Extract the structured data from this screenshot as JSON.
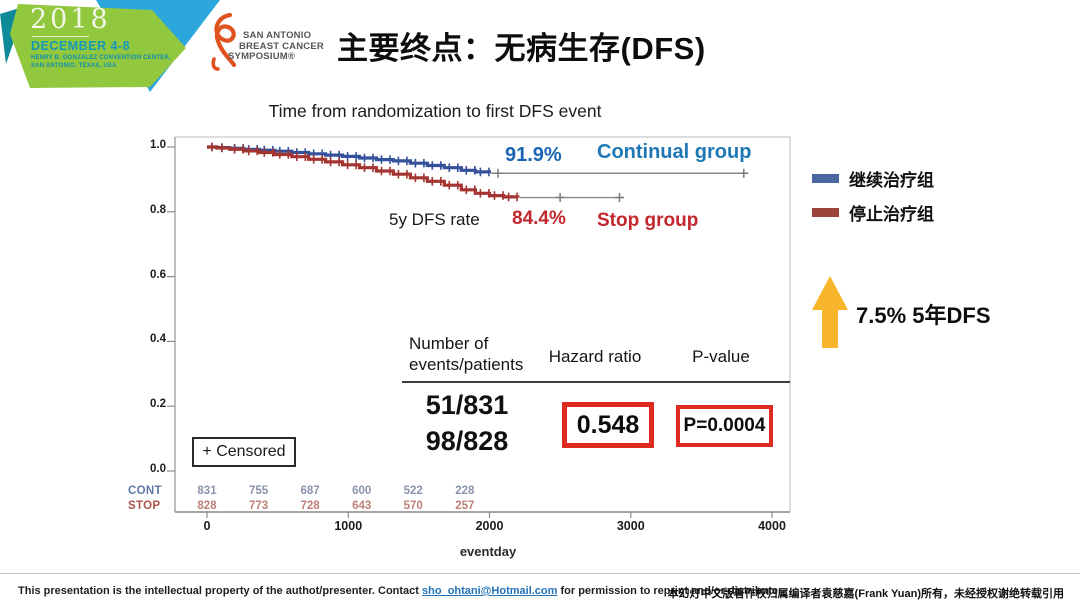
{
  "header": {
    "year": "2018",
    "dates": "DECEMBER 4-8",
    "venue_line1": "HENRY B. GONZALEZ CONVENTION CENTER,",
    "venue_line2": "SAN ANTONIO, TEXAS, USA",
    "logo_lines": [
      "SAN ANTONIO",
      "BREAST CANCER",
      "SYMPOSIUM®"
    ],
    "title": "主要终点：无病生存(DFS)",
    "banner_colors": {
      "green": "#92c83e",
      "blue": "#2ba7dc",
      "teal": "#0e8a99",
      "ribbon_orange": "#e0531f"
    }
  },
  "chart_data": {
    "type": "line",
    "title": "Time from randomization to first DFS event",
    "xlabel": "eventday",
    "ylabel": "",
    "xlim": [
      0,
      4000
    ],
    "ylim": [
      0.0,
      1.0
    ],
    "grid": false,
    "xticks": [
      "0",
      "1000",
      "2000",
      "3000",
      "4000"
    ],
    "yticks": [
      "1.0",
      "0.8",
      "0.6",
      "0.4",
      "0.2",
      "0.0"
    ],
    "rate_label": "5y DFS rate",
    "censored_label": "+ Censored",
    "series": [
      {
        "name": "Continual group",
        "label_5y": "91.9%",
        "color": "#35519b",
        "steps": [
          [
            0,
            1
          ],
          [
            70,
            0.998
          ],
          [
            160,
            0.996
          ],
          [
            260,
            0.993
          ],
          [
            370,
            0.99
          ],
          [
            480,
            0.987
          ],
          [
            600,
            0.983
          ],
          [
            720,
            0.979
          ],
          [
            840,
            0.975
          ],
          [
            960,
            0.971
          ],
          [
            1080,
            0.966
          ],
          [
            1200,
            0.961
          ],
          [
            1320,
            0.957
          ],
          [
            1440,
            0.95
          ],
          [
            1560,
            0.943
          ],
          [
            1680,
            0.936
          ],
          [
            1800,
            0.928
          ],
          [
            1900,
            0.923
          ],
          [
            2000,
            0.919
          ]
        ],
        "ext": {
          "s": 0.919,
          "from": 2010,
          "to": 3830,
          "plus": [
            2060,
            3800
          ]
        }
      },
      {
        "name": "Stop group",
        "label_5y": "84.4%",
        "color": "#a33430",
        "steps": [
          [
            0,
            1
          ],
          [
            70,
            0.997
          ],
          [
            160,
            0.993
          ],
          [
            260,
            0.988
          ],
          [
            370,
            0.983
          ],
          [
            480,
            0.977
          ],
          [
            600,
            0.97
          ],
          [
            720,
            0.962
          ],
          [
            840,
            0.954
          ],
          [
            960,
            0.945
          ],
          [
            1080,
            0.936
          ],
          [
            1200,
            0.926
          ],
          [
            1320,
            0.916
          ],
          [
            1440,
            0.905
          ],
          [
            1560,
            0.894
          ],
          [
            1680,
            0.882
          ],
          [
            1800,
            0.868
          ],
          [
            1900,
            0.857
          ],
          [
            2000,
            0.85
          ],
          [
            2100,
            0.846
          ],
          [
            2200,
            0.844
          ]
        ],
        "ext": {
          "s": 0.844,
          "from": 2210,
          "to": 2940,
          "plus": [
            2500,
            2920
          ]
        }
      }
    ],
    "summary_table": {
      "col1_header_line1": "Number of",
      "col1_header_line2": "events/patients",
      "col2_header": "Hazard ratio",
      "col3_header": "P-value",
      "events_continual": "51/831",
      "events_stop": "98/828",
      "hazard_ratio": "0.548",
      "p_value": "P=0.0004",
      "box_color": "#de2b22"
    },
    "risk_table": {
      "times": [
        0,
        365,
        730,
        1095,
        1460,
        1825
      ],
      "rows": [
        {
          "label": "CONT",
          "label_color": "#5c76a8",
          "value_color": "#8a93ad",
          "values": [
            "831",
            "755",
            "687",
            "600",
            "522",
            "228"
          ]
        },
        {
          "label": "STOP",
          "label_color": "#a8524a",
          "value_color": "#bd8078",
          "values": [
            "828",
            "773",
            "728",
            "643",
            "570",
            "257"
          ]
        }
      ]
    }
  },
  "legend": {
    "items": [
      {
        "label": "继续治疗组",
        "color": "#4a679f"
      },
      {
        "label": "停止治疗组",
        "color": "#9e423c"
      }
    ]
  },
  "highlight": {
    "arrow_color": "#f7b52c",
    "text": "7.5%  5年DFS"
  },
  "footer": {
    "left_pre": "This presentation is the intellectual property of the authot/presenter. Contact ",
    "left_link": "sho_ohtani@Hotmail.com",
    "left_post": " for permission to reprint and/or distribute.",
    "right": "本幻灯中文版著作权归属编译者袁慈嘉(Frank Yuan)所有，未经授权谢绝转载引用"
  }
}
